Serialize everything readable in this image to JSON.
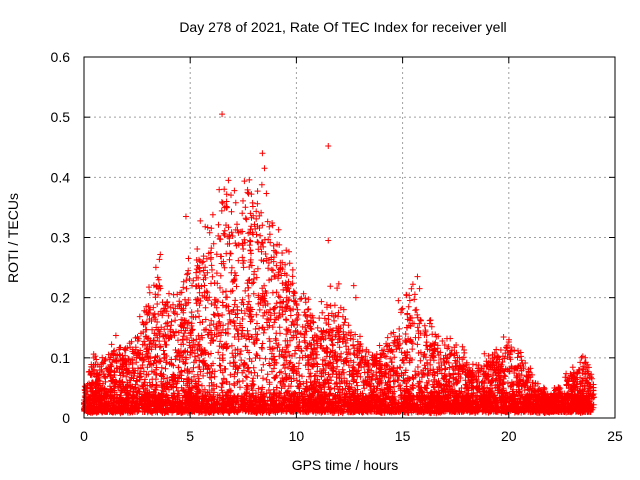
{
  "chart_data": {
    "type": "scatter",
    "title": "Day 278 of 2021, Rate Of TEC Index for receiver yell",
    "xlabel": "GPS time / hours",
    "ylabel": "ROTI / TECUs",
    "xlim": [
      0,
      25
    ],
    "ylim": [
      0,
      0.6
    ],
    "xticks": [
      "0",
      "5",
      "10",
      "15",
      "20",
      "25"
    ],
    "yticks": [
      "0",
      "0.1",
      "0.2",
      "0.3",
      "0.4",
      "0.5",
      "0.6"
    ],
    "grid": true,
    "marker": "+",
    "color": "#ff0000",
    "envelope": {
      "hours": [
        0,
        0.5,
        1,
        1.5,
        2,
        2.5,
        3,
        3.5,
        4,
        4.5,
        5,
        5.5,
        6,
        6.5,
        7,
        7.5,
        8,
        8.5,
        9,
        9.5,
        10,
        10.5,
        11,
        11.5,
        12,
        12.5,
        13,
        13.5,
        14,
        14.5,
        15,
        15.5,
        16,
        16.5,
        17,
        17.5,
        18,
        18.5,
        19,
        19.5,
        20,
        20.5,
        21,
        21.5,
        22,
        22.5,
        23,
        23.5,
        24
      ],
      "upper_roti": [
        0.05,
        0.1,
        0.1,
        0.12,
        0.12,
        0.14,
        0.2,
        0.25,
        0.2,
        0.22,
        0.26,
        0.3,
        0.3,
        0.37,
        0.34,
        0.37,
        0.36,
        0.35,
        0.3,
        0.29,
        0.22,
        0.2,
        0.17,
        0.19,
        0.2,
        0.15,
        0.12,
        0.1,
        0.12,
        0.13,
        0.19,
        0.2,
        0.16,
        0.15,
        0.12,
        0.12,
        0.1,
        0.09,
        0.11,
        0.1,
        0.14,
        0.1,
        0.08,
        0.05,
        0.04,
        0.06,
        0.08,
        0.1,
        0.06
      ]
    },
    "outliers": [
      {
        "x": 6.5,
        "y": 0.505
      },
      {
        "x": 11.5,
        "y": 0.452
      },
      {
        "x": 11.5,
        "y": 0.295
      },
      {
        "x": 8.4,
        "y": 0.44
      },
      {
        "x": 8.5,
        "y": 0.415
      },
      {
        "x": 6.8,
        "y": 0.395
      },
      {
        "x": 7.7,
        "y": 0.375
      },
      {
        "x": 4.8,
        "y": 0.335
      },
      {
        "x": 15.7,
        "y": 0.235
      },
      {
        "x": 15.8,
        "y": 0.215
      },
      {
        "x": 12.8,
        "y": 0.2
      },
      {
        "x": 14.8,
        "y": 0.195
      },
      {
        "x": 12.7,
        "y": 0.22
      }
    ]
  }
}
